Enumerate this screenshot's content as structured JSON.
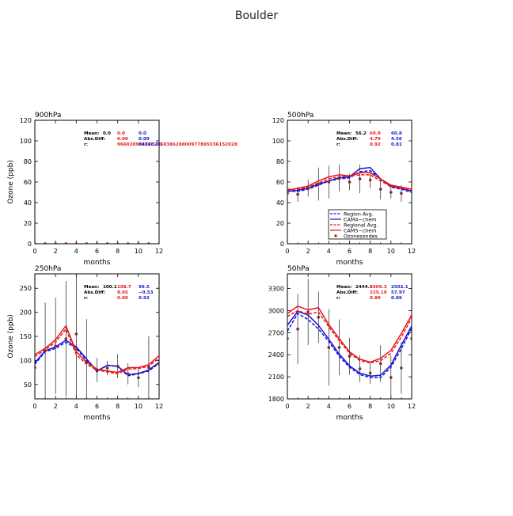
{
  "page_title": "Boulder",
  "colors": {
    "black": "#000000",
    "red": "#e8151b",
    "blue": "#1414d6",
    "obs": "#7a2a30"
  },
  "legend": {
    "entries": [
      {
        "label": "Region Avg.",
        "color": "#1414d6",
        "style": "dashed"
      },
      {
        "label": "CAM4−chem",
        "color": "#1414d6",
        "style": "solid"
      },
      {
        "label": "Regional Avg.",
        "color": "#e8151b",
        "style": "dashed"
      },
      {
        "label": "CAM5−chem",
        "color": "#e8151b",
        "style": "solid"
      },
      {
        "label": "Ozonesondes",
        "color": "#7a2a30",
        "style": "marker"
      }
    ]
  },
  "chart_data": [
    {
      "type": "line",
      "title": "900hPa",
      "xlabel": "months",
      "ylabel": "Ozone (ppb)",
      "xlim": [
        0,
        12
      ],
      "ylim": [
        0,
        120
      ],
      "xticks": [
        0,
        2,
        4,
        6,
        8,
        10,
        12
      ],
      "yticks": [
        0,
        20,
        40,
        60,
        80,
        100,
        120
      ],
      "x": [
        0,
        1,
        2,
        3,
        4,
        5,
        6,
        7,
        8,
        9,
        10,
        11,
        12
      ],
      "series": [],
      "observations": {
        "x": [
          0,
          1,
          2,
          3,
          4,
          5,
          6,
          7,
          8,
          9,
          10,
          11,
          12
        ],
        "y": [
          0,
          0,
          0,
          0,
          0,
          0,
          0,
          0,
          0,
          0,
          0,
          0,
          0
        ],
        "err": []
      },
      "stats": {
        "labels": [
          "Mean:",
          "Abs.Diff:",
          "r:"
        ],
        "obs": [
          "0.0",
          "",
          ""
        ],
        "cam5": [
          "0.0",
          "0.00",
          "966020998863256838628800977895536152028"
        ],
        "cam4": [
          "0.0",
          "0.00",
          "84320.00"
        ]
      }
    },
    {
      "type": "line",
      "title": "500hPa",
      "xlabel": "months",
      "ylabel": "",
      "xlim": [
        0,
        12
      ],
      "ylim": [
        0,
        120
      ],
      "xticks": [
        0,
        2,
        4,
        6,
        8,
        10,
        12
      ],
      "yticks": [
        0,
        20,
        40,
        60,
        80,
        100,
        120
      ],
      "x": [
        0,
        1,
        2,
        3,
        4,
        5,
        6,
        7,
        8,
        9,
        10,
        11,
        12
      ],
      "series": [
        {
          "name": "Region Avg.",
          "color": "#1414d6",
          "dash": true,
          "values": [
            51,
            51,
            53,
            57,
            61,
            63,
            64,
            70,
            71,
            63,
            55,
            53,
            50
          ]
        },
        {
          "name": "CAM4−chem",
          "color": "#1414d6",
          "dash": false,
          "values": [
            51,
            52,
            54,
            58,
            61,
            64,
            65,
            73,
            74,
            63,
            56,
            54,
            51
          ]
        },
        {
          "name": "Regional Avg.",
          "color": "#e8151b",
          "dash": true,
          "values": [
            53,
            53,
            55,
            59,
            63,
            65,
            66,
            67,
            67,
            61,
            56,
            54,
            52
          ]
        },
        {
          "name": "CAM5−chem",
          "color": "#e8151b",
          "dash": false,
          "values": [
            52,
            54,
            56,
            61,
            65,
            67,
            66,
            69,
            69,
            63,
            57,
            55,
            53
          ]
        }
      ],
      "observations": {
        "x": [
          0,
          1,
          2,
          3,
          4,
          5,
          6,
          7,
          8,
          9,
          10,
          11
        ],
        "y": [
          49,
          48,
          54,
          58,
          60,
          64,
          60,
          63,
          62,
          53,
          50,
          49
        ],
        "err": [
          5,
          7,
          8,
          16,
          16,
          13,
          8,
          14,
          8,
          10,
          6,
          8
        ]
      },
      "stats": {
        "labels": [
          "Mean:",
          "Abs.Diff:",
          "r:"
        ],
        "obs": [
          "56.2",
          "",
          ""
        ],
        "cam5": [
          "60.9",
          "4.70",
          "0.92"
        ],
        "cam4": [
          "60.8",
          "4.56",
          "0.81"
        ]
      }
    },
    {
      "type": "line",
      "title": "250hPa",
      "xlabel": "months",
      "ylabel": "Ozone (ppb)",
      "xlim": [
        0,
        12
      ],
      "ylim": [
        20,
        280
      ],
      "xticks": [
        0,
        2,
        4,
        6,
        8,
        10,
        12
      ],
      "yticks": [
        50,
        100,
        150,
        200,
        250
      ],
      "x": [
        0,
        1,
        2,
        3,
        4,
        5,
        6,
        7,
        8,
        9,
        10,
        11,
        12
      ],
      "series": [
        {
          "name": "Region Avg.",
          "color": "#1414d6",
          "dash": true,
          "values": [
            92,
            118,
            125,
            138,
            125,
            100,
            76,
            90,
            87,
            68,
            72,
            78,
            94
          ]
        },
        {
          "name": "CAM4−chem",
          "color": "#1414d6",
          "dash": false,
          "values": [
            95,
            120,
            128,
            142,
            128,
            103,
            78,
            90,
            88,
            70,
            73,
            80,
            96
          ]
        },
        {
          "name": "Regional Avg.",
          "color": "#e8151b",
          "dash": true,
          "values": [
            108,
            122,
            138,
            165,
            112,
            92,
            80,
            76,
            72,
            82,
            83,
            88,
            105
          ]
        },
        {
          "name": "CAM5−chem",
          "color": "#e8151b",
          "dash": false,
          "values": [
            112,
            125,
            143,
            172,
            118,
            96,
            82,
            78,
            75,
            85,
            85,
            91,
            110
          ]
        }
      ],
      "observations": {
        "x": [
          0,
          1,
          2,
          3,
          4,
          5,
          6,
          7,
          8,
          9,
          10,
          11,
          12
        ],
        "y": [
          85,
          120,
          130,
          145,
          155,
          96,
          80,
          84,
          88,
          72,
          64,
          85,
          92
        ],
        "err": [
          65,
          100,
          100,
          120,
          130,
          90,
          25,
          15,
          25,
          22,
          20,
          65,
          55
        ]
      },
      "stats": {
        "labels": [
          "Mean:",
          "Abs.Diff:",
          "r:"
        ],
        "obs": [
          "100.1",
          "",
          ""
        ],
        "cam5": [
          "108.7",
          "8.65",
          "0.90"
        ],
        "cam4": [
          "99.5",
          "−0.53",
          "0.92"
        ]
      }
    },
    {
      "type": "line",
      "title": "50hPa",
      "xlabel": "months",
      "ylabel": "",
      "xlim": [
        0,
        12
      ],
      "ylim": [
        1800,
        3500
      ],
      "xticks": [
        0,
        2,
        4,
        6,
        8,
        10,
        12
      ],
      "yticks": [
        1800,
        2100,
        2400,
        2700,
        3000,
        3300
      ],
      "x": [
        0,
        1,
        2,
        3,
        4,
        5,
        6,
        7,
        8,
        9,
        10,
        11,
        12
      ],
      "series": [
        {
          "name": "Region Avg.",
          "color": "#1414d6",
          "dash": true,
          "values": [
            2720,
            2960,
            2880,
            2750,
            2580,
            2380,
            2230,
            2130,
            2090,
            2090,
            2230,
            2480,
            2760
          ]
        },
        {
          "name": "CAM4−chem",
          "color": "#1414d6",
          "dash": false,
          "values": [
            2800,
            2990,
            2940,
            2800,
            2610,
            2410,
            2250,
            2150,
            2110,
            2120,
            2260,
            2530,
            2790
          ]
        },
        {
          "name": "Regional Avg.",
          "color": "#e8151b",
          "dash": true,
          "values": [
            2920,
            3000,
            2950,
            2980,
            2780,
            2590,
            2420,
            2320,
            2290,
            2320,
            2420,
            2640,
            2900
          ]
        },
        {
          "name": "CAM5−chem",
          "color": "#e8151b",
          "dash": false,
          "values": [
            2960,
            3060,
            3010,
            3040,
            2810,
            2620,
            2440,
            2340,
            2300,
            2350,
            2460,
            2690,
            2940
          ]
        }
      ],
      "observations": {
        "x": [
          0,
          1,
          2,
          3,
          4,
          5,
          6,
          7,
          8,
          9,
          10,
          11,
          12
        ],
        "y": [
          2620,
          2750,
          2980,
          2910,
          2500,
          2500,
          2380,
          2210,
          2150,
          2280,
          2090,
          2220,
          2620
        ],
        "err": [
          200,
          480,
          450,
          350,
          520,
          380,
          250,
          180,
          150,
          250,
          300,
          350,
          300
        ]
      },
      "stats": {
        "labels": [
          "Mean:",
          "Abs.Diff:",
          "r:"
        ],
        "obs": [
          "2444.1",
          "",
          ""
        ],
        "cam5": [
          "2669.3",
          "225.19",
          "0.89"
        ],
        "cam4": [
          "2502.1",
          "57.97",
          "0.89"
        ]
      }
    }
  ]
}
